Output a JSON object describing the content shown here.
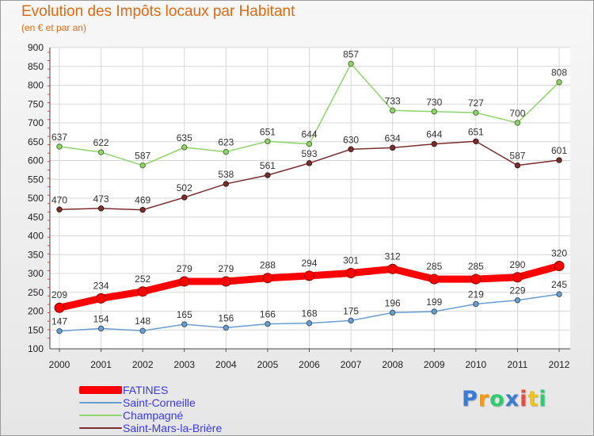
{
  "header": {
    "title": "Evolution des Impôts locaux par Habitant",
    "subtitle": "(en € et par an)"
  },
  "branding": {
    "logo_text": "Proxiti",
    "logo_colors": [
      "#3a7bd5",
      "#f39c12",
      "#2ecc71",
      "#3a7bd5",
      "#e74c3c",
      "#f1c40f",
      "#2ecc71"
    ]
  },
  "chart_data": {
    "type": "line",
    "title": "Evolution des Impôts locaux par Habitant",
    "subtitle": "(en € et par an)",
    "xlabel": "",
    "ylabel": "",
    "x": [
      "2000",
      "2001",
      "2002",
      "2003",
      "2004",
      "2005",
      "2006",
      "2007",
      "2008",
      "2009",
      "2010",
      "2011",
      "2012"
    ],
    "ylim": [
      100,
      900
    ],
    "yticks": [
      100,
      150,
      200,
      250,
      300,
      350,
      400,
      450,
      500,
      550,
      600,
      650,
      700,
      750,
      800,
      850,
      900
    ],
    "grid": true,
    "legend_position": "bottom-left",
    "series": [
      {
        "name": "FATINES",
        "color": "#ff0000",
        "emphasis": true,
        "values": [
          209,
          234,
          252,
          279,
          279,
          288,
          294,
          301,
          312,
          285,
          285,
          290,
          320
        ]
      },
      {
        "name": "Saint-Corneille",
        "color": "#6b9ed0",
        "emphasis": false,
        "values": [
          147,
          154,
          148,
          165,
          156,
          166,
          168,
          175,
          196,
          199,
          219,
          229,
          245
        ]
      },
      {
        "name": "Champagné",
        "color": "#8fd46a",
        "emphasis": false,
        "values": [
          637,
          622,
          587,
          635,
          623,
          651,
          644,
          857,
          733,
          730,
          727,
          700,
          808
        ]
      },
      {
        "name": "Saint-Mars-la-Brière",
        "color": "#7a2e2e",
        "emphasis": false,
        "values": [
          470,
          473,
          469,
          502,
          538,
          561,
          593,
          630,
          634,
          644,
          651,
          587,
          601
        ]
      }
    ]
  }
}
